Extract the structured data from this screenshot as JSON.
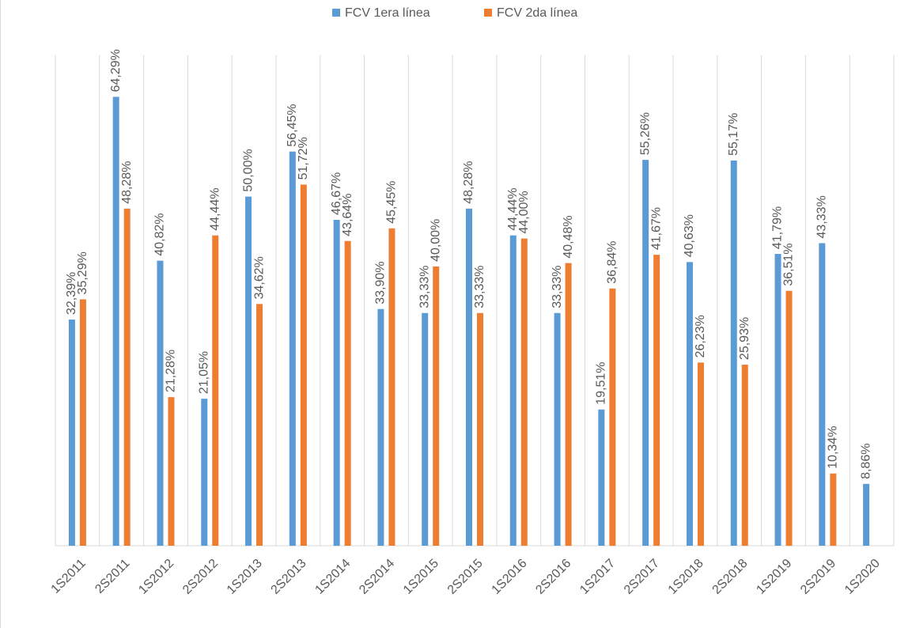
{
  "chart_data": {
    "type": "bar",
    "categories": [
      "1S2011",
      "2S2011",
      "1S2012",
      "2S2012",
      "1S2013",
      "2S2013",
      "1S2014",
      "2S2014",
      "1S2015",
      "2S2015",
      "1S2016",
      "2S2016",
      "1S2017",
      "2S2017",
      "1S2018",
      "2S2018",
      "1S2019",
      "2S2019",
      "1S2020"
    ],
    "series": [
      {
        "name": "FCV 1era línea",
        "color": "#5b9bd5",
        "values": [
          32.39,
          64.29,
          40.82,
          21.05,
          50.0,
          56.45,
          46.67,
          33.9,
          33.33,
          48.28,
          44.44,
          33.33,
          19.51,
          55.26,
          40.63,
          55.17,
          41.79,
          43.33,
          8.86
        ],
        "value_labels": [
          "32,39%",
          "64,29%",
          "40,82%",
          "21,05%",
          "50,00%",
          "56,45%",
          "46,67%",
          "33,90%",
          "33,33%",
          "48,28%",
          "44,44%",
          "33,33%",
          "19,51%",
          "55,26%",
          "40,63%",
          "55,17%",
          "41,79%",
          "43,33%",
          "8,86%"
        ]
      },
      {
        "name": "FCV 2da línea",
        "color": "#ed7d31",
        "values": [
          35.29,
          48.28,
          21.28,
          44.44,
          34.62,
          51.72,
          43.64,
          45.45,
          40.0,
          33.33,
          44.0,
          40.48,
          36.84,
          41.67,
          26.23,
          25.93,
          36.51,
          10.34,
          null
        ],
        "value_labels": [
          "35,29%",
          "48,28%",
          "21,28%",
          "44,44%",
          "34,62%",
          "51,72%",
          "43,64%",
          "45,45%",
          "40,00%",
          "33,33%",
          "44,00%",
          "40,48%",
          "36,84%",
          "41,67%",
          "26,23%",
          "25,93%",
          "36,51%",
          "10,34%",
          null
        ]
      }
    ],
    "ylim": [
      0,
      70
    ],
    "legend": "top"
  }
}
